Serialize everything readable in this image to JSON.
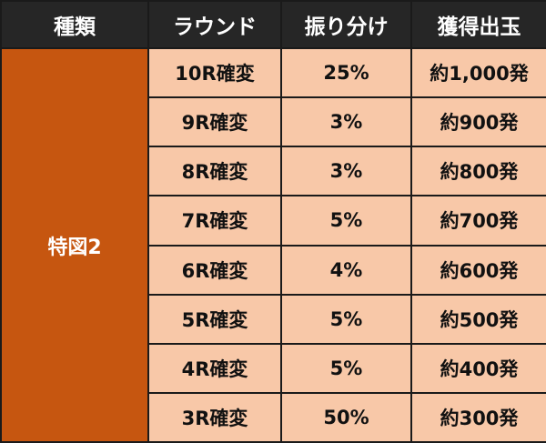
{
  "header": {
    "type": "種類",
    "round": "ラウンド",
    "distribution": "振り分け",
    "payout": "獲得出玉"
  },
  "type_label": "特図2",
  "rows": [
    {
      "round": "10R確変",
      "distribution": "25%",
      "payout": "約1,000発"
    },
    {
      "round": "9R確変",
      "distribution": "3%",
      "payout": "約900発"
    },
    {
      "round": "8R確変",
      "distribution": "3%",
      "payout": "約800発"
    },
    {
      "round": "7R確変",
      "distribution": "5%",
      "payout": "約700発"
    },
    {
      "round": "6R確変",
      "distribution": "4%",
      "payout": "約600発"
    },
    {
      "round": "5R確変",
      "distribution": "5%",
      "payout": "約500発"
    },
    {
      "round": "4R確変",
      "distribution": "5%",
      "payout": "約400発"
    },
    {
      "round": "3R確変",
      "distribution": "50%",
      "payout": "約300発"
    }
  ],
  "colors": {
    "header_bg": "#262626",
    "type_bg": "#c65610",
    "cell_bg": "#f8c8a8"
  }
}
